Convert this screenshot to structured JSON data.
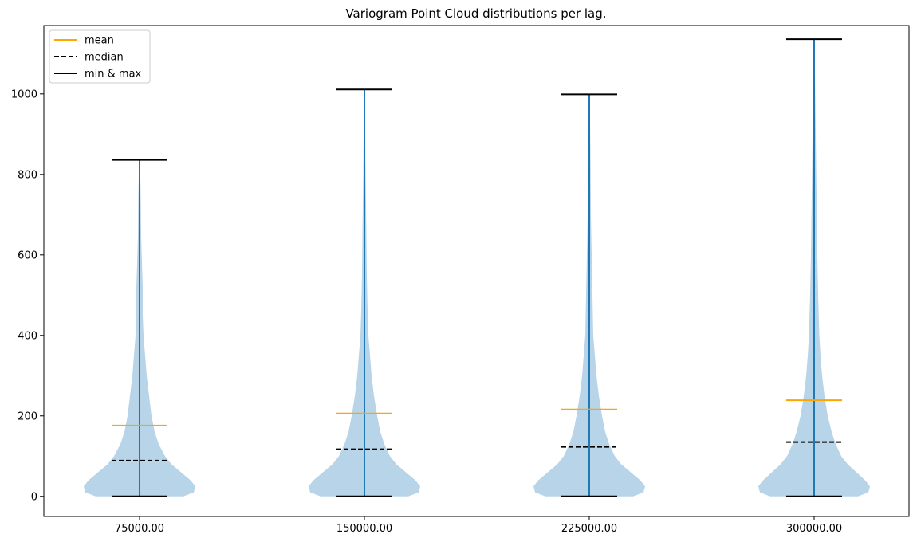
{
  "chart_data": {
    "type": "violin",
    "title": "Variogram Point Cloud distributions per lag.",
    "xlabel": "",
    "ylabel": "",
    "categories": [
      "75000.00",
      "150000.00",
      "225000.00",
      "300000.00"
    ],
    "ylim": [
      -50,
      1170
    ],
    "yticks": [
      0,
      200,
      400,
      600,
      800,
      1000
    ],
    "ytick_labels": [
      "0",
      "200",
      "400",
      "600",
      "800",
      "1000"
    ],
    "grid": false,
    "legend_position": "top-left",
    "legend": [
      {
        "label": "mean",
        "style": "solid",
        "color": "#ffa500"
      },
      {
        "label": "median",
        "style": "dashed",
        "color": "#000000"
      },
      {
        "label": "min & max",
        "style": "solid",
        "color": "#000000"
      }
    ],
    "colors": {
      "violin_fill": "#b8d4e8",
      "center_line": "#1f77b4",
      "mean": "#ffa500",
      "median": "#000000",
      "extrema": "#000000"
    },
    "series": [
      {
        "category": "75000.00",
        "min": 0,
        "max": 836,
        "mean": 176,
        "median": 89,
        "profile": [
          [
            0,
            55
          ],
          [
            10,
            68
          ],
          [
            25,
            70
          ],
          [
            40,
            64
          ],
          [
            60,
            52
          ],
          [
            80,
            40
          ],
          [
            100,
            32
          ],
          [
            130,
            24
          ],
          [
            160,
            19
          ],
          [
            200,
            15
          ],
          [
            250,
            12
          ],
          [
            300,
            9
          ],
          [
            350,
            7
          ],
          [
            400,
            5
          ],
          [
            450,
            4
          ],
          [
            520,
            4
          ],
          [
            580,
            3
          ],
          [
            650,
            2
          ],
          [
            750,
            1.5
          ],
          [
            836,
            0.5
          ]
        ]
      },
      {
        "category": "150000.00",
        "min": 0,
        "max": 1011,
        "mean": 206,
        "median": 117,
        "profile": [
          [
            0,
            55
          ],
          [
            10,
            68
          ],
          [
            25,
            70
          ],
          [
            40,
            64
          ],
          [
            60,
            52
          ],
          [
            80,
            40
          ],
          [
            100,
            32
          ],
          [
            130,
            25
          ],
          [
            160,
            20
          ],
          [
            200,
            16
          ],
          [
            250,
            12
          ],
          [
            300,
            9
          ],
          [
            350,
            7
          ],
          [
            400,
            5
          ],
          [
            460,
            4
          ],
          [
            550,
            3
          ],
          [
            650,
            2.5
          ],
          [
            800,
            1.5
          ],
          [
            1011,
            0.5
          ]
        ]
      },
      {
        "category": "225000.00",
        "min": 0,
        "max": 999,
        "mean": 216,
        "median": 123,
        "profile": [
          [
            0,
            55
          ],
          [
            10,
            68
          ],
          [
            25,
            70
          ],
          [
            40,
            64
          ],
          [
            60,
            52
          ],
          [
            80,
            40
          ],
          [
            100,
            32
          ],
          [
            130,
            25
          ],
          [
            160,
            20
          ],
          [
            200,
            16
          ],
          [
            250,
            12
          ],
          [
            300,
            9
          ],
          [
            350,
            7
          ],
          [
            400,
            5
          ],
          [
            500,
            4
          ],
          [
            600,
            3
          ],
          [
            700,
            2
          ],
          [
            850,
            1.5
          ],
          [
            999,
            0.5
          ]
        ]
      },
      {
        "category": "300000.00",
        "min": 0,
        "max": 1136,
        "mean": 239,
        "median": 135,
        "profile": [
          [
            0,
            55
          ],
          [
            10,
            68
          ],
          [
            25,
            70
          ],
          [
            40,
            64
          ],
          [
            60,
            53
          ],
          [
            80,
            42
          ],
          [
            100,
            34
          ],
          [
            130,
            27
          ],
          [
            160,
            22
          ],
          [
            200,
            17
          ],
          [
            250,
            13
          ],
          [
            300,
            10
          ],
          [
            350,
            8
          ],
          [
            400,
            6.5
          ],
          [
            500,
            5
          ],
          [
            600,
            4
          ],
          [
            750,
            3
          ],
          [
            900,
            2
          ],
          [
            1136,
            0.5
          ]
        ]
      }
    ]
  }
}
